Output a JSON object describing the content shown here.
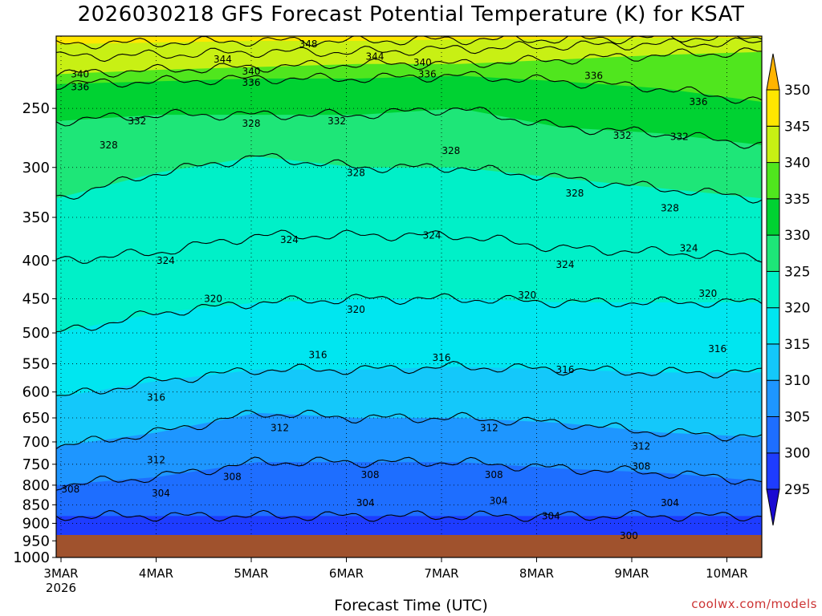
{
  "credit": "coolwx.com/models",
  "chart_data": {
    "type": "contour",
    "title": "2026030218 GFS Forecast Potential Temperature (K) for KSAT",
    "xlabel": "Forecast Time (UTC)",
    "ylabel": "",
    "y_axis": {
      "scale": "log-pressure",
      "inverted": true,
      "ticks": [
        250,
        300,
        350,
        400,
        450,
        500,
        550,
        600,
        650,
        700,
        750,
        800,
        850,
        900,
        950,
        1000
      ],
      "ylim": [
        200,
        1000
      ],
      "units": "hPa"
    },
    "x_axis": {
      "ticks": [
        "3MAR",
        "4MAR",
        "5MAR",
        "6MAR",
        "7MAR",
        "8MAR",
        "9MAR",
        "10MAR"
      ],
      "first_tick_year": "2026"
    },
    "colorbar": {
      "levels": [
        295,
        300,
        305,
        310,
        315,
        320,
        325,
        330,
        335,
        340,
        345,
        350
      ],
      "label": ""
    },
    "fill_colors": [
      "#1a0ad2",
      "#1e3cff",
      "#1e6eff",
      "#1e96ff",
      "#14c8fa",
      "#00e6f0",
      "#00f0c8",
      "#1ee678",
      "#00d232",
      "#50e61e",
      "#c8f014",
      "#ffe600",
      "#ffb400"
    ],
    "ground_color": "#a0522d",
    "contour_lines": [
      {
        "level": 304,
        "pressures": [
          880,
          880,
          880,
          880,
          880,
          880,
          880,
          880
        ]
      },
      {
        "level": 308,
        "pressures": [
          800,
          780,
          745,
          745,
          745,
          760,
          770,
          790
        ]
      },
      {
        "level": 312,
        "pressures": [
          710,
          680,
          640,
          650,
          650,
          660,
          680,
          690
        ]
      },
      {
        "level": 316,
        "pressures": [
          610,
          580,
          560,
          560,
          555,
          560,
          565,
          565
        ]
      },
      {
        "level": 320,
        "pressures": [
          500,
          470,
          455,
          450,
          450,
          455,
          455,
          455
        ]
      },
      {
        "level": 324,
        "pressures": [
          400,
          390,
          370,
          370,
          370,
          385,
          390,
          395
        ]
      },
      {
        "level": 328,
        "pressures": [
          330,
          305,
          290,
          300,
          300,
          310,
          320,
          330
        ]
      },
      {
        "level": 332,
        "pressures": [
          260,
          255,
          255,
          255,
          250,
          265,
          270,
          280
        ]
      },
      {
        "level": 336,
        "pressures": [
          232,
          230,
          228,
          228,
          226,
          230,
          235,
          245
        ]
      },
      {
        "level": 340,
        "pressures": [
          225,
          222,
          220,
          218,
          218,
          215,
          212,
          210
        ]
      },
      {
        "level": 344,
        "pressures": [
          213,
          212,
          210,
          210,
          208,
          206,
          205,
          204
        ]
      },
      {
        "level": 348,
        "pressures": [
          205,
          204,
          203,
          203,
          202,
          202,
          201,
          201
        ]
      }
    ],
    "contour_labels": [
      {
        "text": "348",
        "day": 2.6,
        "p": 205
      },
      {
        "text": "344",
        "day": 1.7,
        "p": 215
      },
      {
        "text": "344",
        "day": 3.3,
        "p": 213
      },
      {
        "text": "340",
        "day": 0.2,
        "p": 225
      },
      {
        "text": "340",
        "day": 2.0,
        "p": 223
      },
      {
        "text": "340",
        "day": 3.8,
        "p": 217
      },
      {
        "text": "336",
        "day": 0.2,
        "p": 234
      },
      {
        "text": "336",
        "day": 2.0,
        "p": 231
      },
      {
        "text": "336",
        "day": 3.85,
        "p": 225
      },
      {
        "text": "336",
        "day": 5.6,
        "p": 226
      },
      {
        "text": "336",
        "day": 6.7,
        "p": 245
      },
      {
        "text": "332",
        "day": 0.8,
        "p": 260
      },
      {
        "text": "332",
        "day": 2.9,
        "p": 260
      },
      {
        "text": "332",
        "day": 5.9,
        "p": 272
      },
      {
        "text": "332",
        "day": 6.5,
        "p": 273
      },
      {
        "text": "328",
        "day": 0.5,
        "p": 280
      },
      {
        "text": "328",
        "day": 2.0,
        "p": 262
      },
      {
        "text": "328",
        "day": 4.1,
        "p": 285
      },
      {
        "text": "328",
        "day": 3.1,
        "p": 305
      },
      {
        "text": "328",
        "day": 5.4,
        "p": 325
      },
      {
        "text": "328",
        "day": 6.4,
        "p": 340
      },
      {
        "text": "324",
        "day": 2.4,
        "p": 375
      },
      {
        "text": "324",
        "day": 1.1,
        "p": 400
      },
      {
        "text": "324",
        "day": 3.9,
        "p": 370
      },
      {
        "text": "324",
        "day": 5.3,
        "p": 405
      },
      {
        "text": "324",
        "day": 6.6,
        "p": 385
      },
      {
        "text": "320",
        "day": 1.6,
        "p": 450
      },
      {
        "text": "320",
        "day": 3.1,
        "p": 465
      },
      {
        "text": "320",
        "day": 4.9,
        "p": 445
      },
      {
        "text": "320",
        "day": 6.8,
        "p": 443
      },
      {
        "text": "316",
        "day": 2.7,
        "p": 535
      },
      {
        "text": "316",
        "day": 4.0,
        "p": 540
      },
      {
        "text": "316",
        "day": 5.3,
        "p": 560
      },
      {
        "text": "316",
        "day": 6.9,
        "p": 525
      },
      {
        "text": "316",
        "day": 1.0,
        "p": 610
      },
      {
        "text": "312",
        "day": 2.3,
        "p": 670
      },
      {
        "text": "312",
        "day": 4.5,
        "p": 670
      },
      {
        "text": "312",
        "day": 6.1,
        "p": 710
      },
      {
        "text": "312",
        "day": 1.0,
        "p": 740
      },
      {
        "text": "308",
        "day": 0.1,
        "p": 810
      },
      {
        "text": "308",
        "day": 1.8,
        "p": 780
      },
      {
        "text": "308",
        "day": 3.25,
        "p": 775
      },
      {
        "text": "308",
        "day": 4.55,
        "p": 775
      },
      {
        "text": "308",
        "day": 6.1,
        "p": 755
      },
      {
        "text": "304",
        "day": 1.05,
        "p": 820
      },
      {
        "text": "304",
        "day": 3.2,
        "p": 845
      },
      {
        "text": "304",
        "day": 4.6,
        "p": 840
      },
      {
        "text": "304",
        "day": 5.15,
        "p": 880
      },
      {
        "text": "304",
        "day": 6.4,
        "p": 845
      },
      {
        "text": "300",
        "day": 5.97,
        "p": 935
      }
    ]
  }
}
